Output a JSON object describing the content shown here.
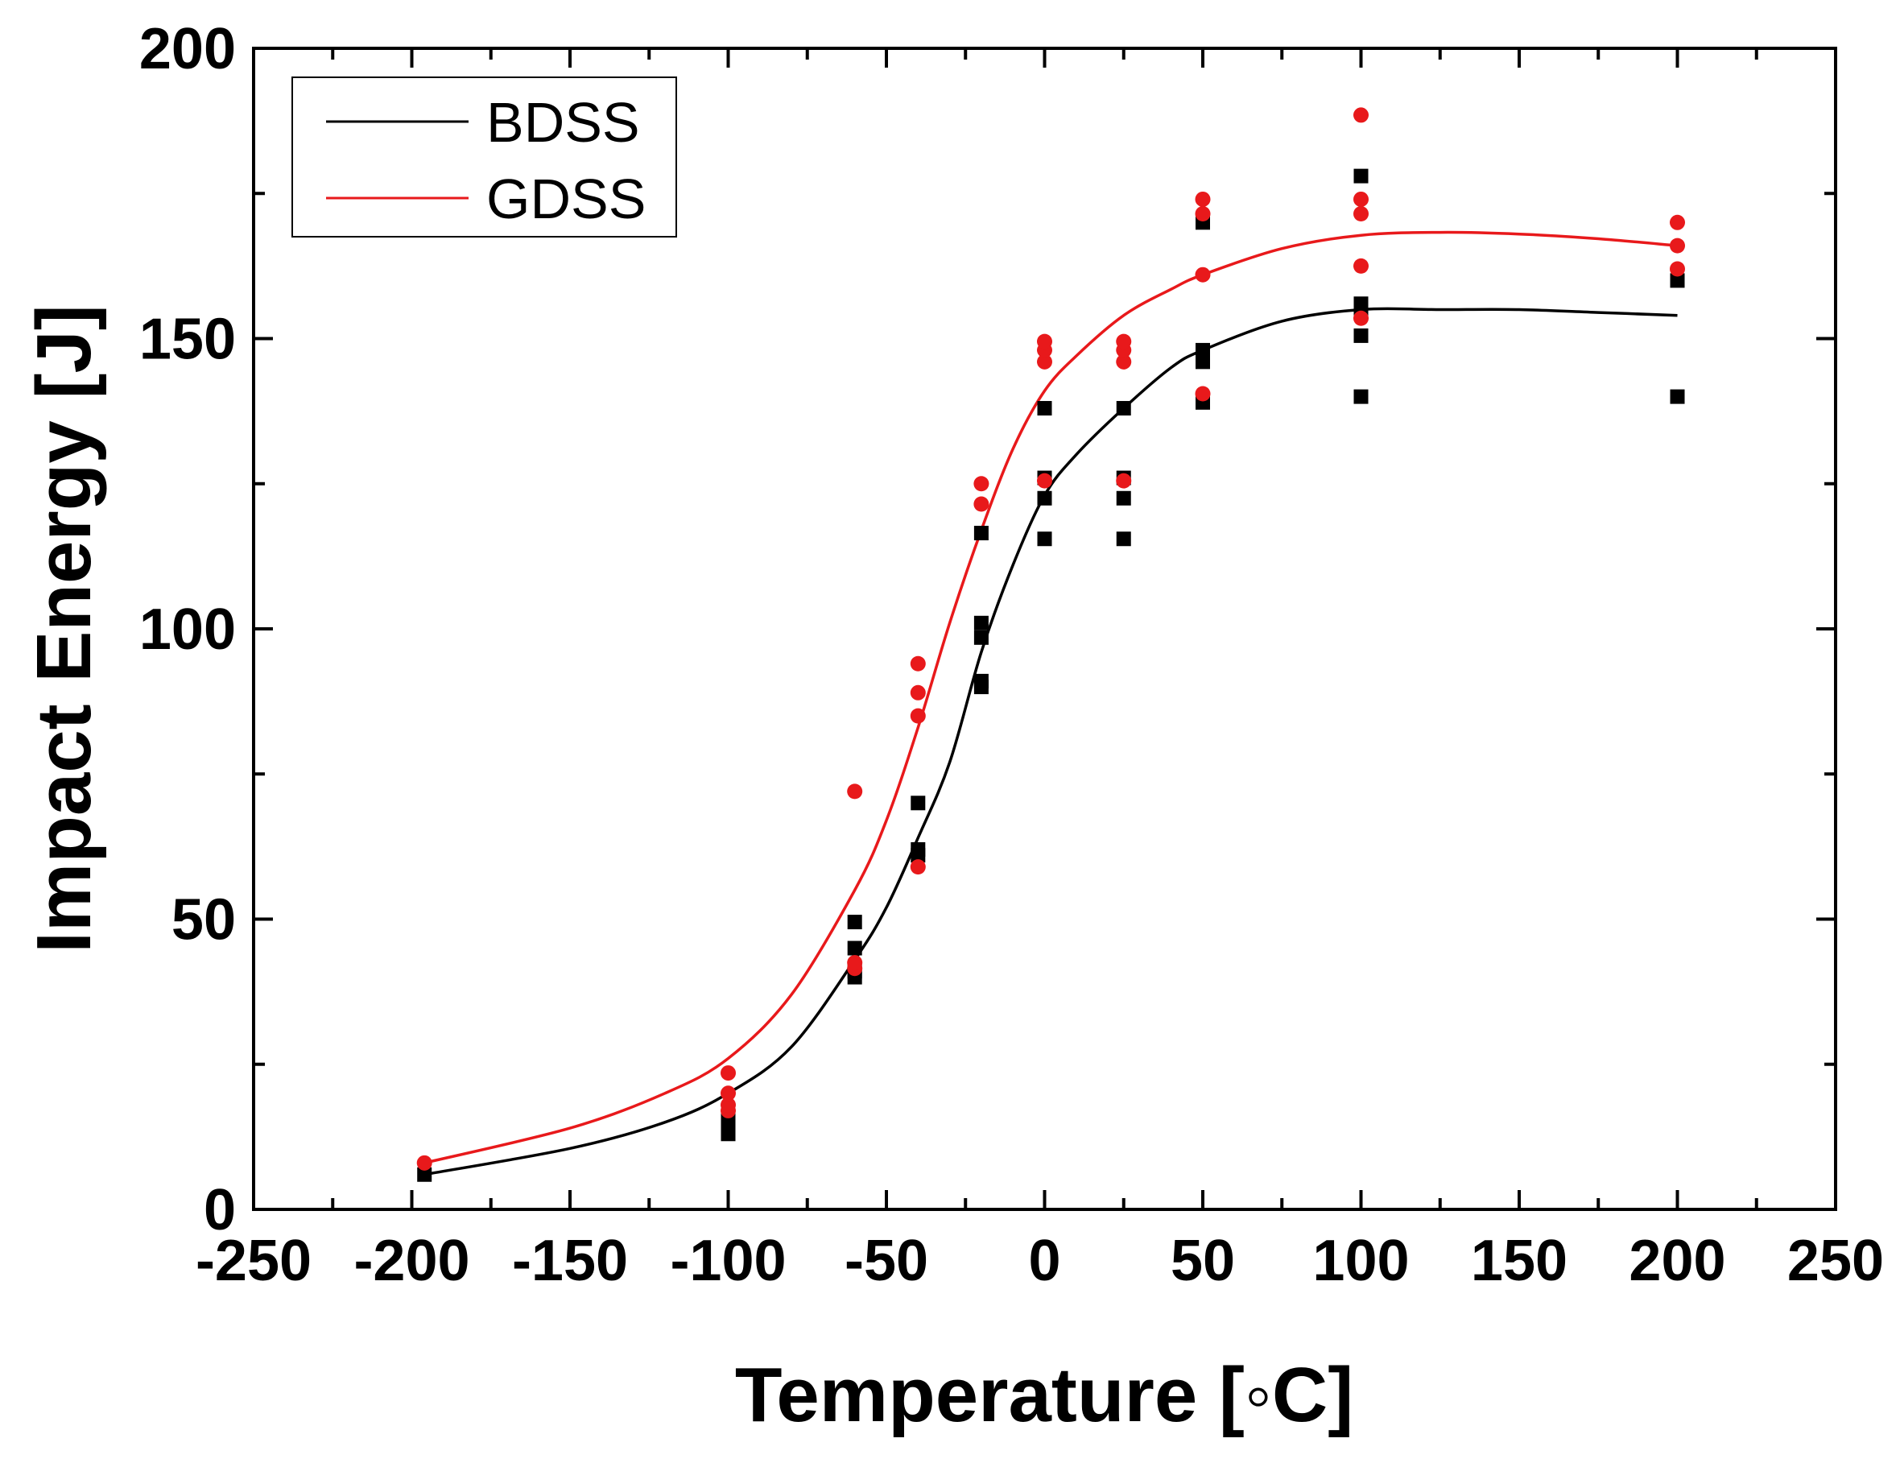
{
  "chart_data": {
    "type": "scatter",
    "xlabel": "Temperature [◦C]",
    "ylabel": "Impact Energy [J]",
    "xlim": [
      -250,
      250
    ],
    "ylim": [
      0,
      200
    ],
    "x_ticks": [
      -250,
      -200,
      -150,
      -100,
      -50,
      0,
      50,
      100,
      150,
      200,
      250
    ],
    "y_ticks": [
      0,
      50,
      100,
      150,
      200
    ],
    "x_tick_labels": [
      "-250",
      "-200",
      "-150",
      "-100",
      "-50",
      "0",
      "50",
      "100",
      "150",
      "200",
      "250"
    ],
    "y_tick_labels": [
      "0",
      "50",
      "100",
      "150",
      "200"
    ],
    "legend_position": "top-left",
    "series": [
      {
        "name": "BDSS",
        "color": "#000000",
        "marker": "square",
        "points": [
          [
            -196,
            6
          ],
          [
            -100,
            13
          ],
          [
            -100,
            14
          ],
          [
            -100,
            15
          ],
          [
            -100,
            16
          ],
          [
            -60,
            40
          ],
          [
            -60,
            41
          ],
          [
            -60,
            45
          ],
          [
            -60,
            49.5
          ],
          [
            -40,
            61
          ],
          [
            -40,
            62
          ],
          [
            -40,
            70
          ],
          [
            -20,
            90
          ],
          [
            -20,
            91
          ],
          [
            -20,
            98.5
          ],
          [
            -20,
            101
          ],
          [
            -20,
            116.5
          ],
          [
            0,
            115.5
          ],
          [
            0,
            122.5
          ],
          [
            0,
            126
          ],
          [
            0,
            138
          ],
          [
            25,
            115.5
          ],
          [
            25,
            122.5
          ],
          [
            25,
            126
          ],
          [
            25,
            138
          ],
          [
            50,
            139
          ],
          [
            50,
            146
          ],
          [
            50,
            147
          ],
          [
            50,
            148
          ],
          [
            50,
            170
          ],
          [
            100,
            140
          ],
          [
            100,
            150.5
          ],
          [
            100,
            155
          ],
          [
            100,
            156
          ],
          [
            100,
            178
          ],
          [
            200,
            140
          ],
          [
            200,
            160
          ]
        ],
        "fit_curve": [
          [
            -196,
            6
          ],
          [
            -150,
            10.5
          ],
          [
            -120,
            15
          ],
          [
            -100,
            20
          ],
          [
            -80,
            28
          ],
          [
            -60,
            43
          ],
          [
            -50,
            52
          ],
          [
            -40,
            64
          ],
          [
            -30,
            77
          ],
          [
            -20,
            96
          ],
          [
            -10,
            111
          ],
          [
            0,
            123
          ],
          [
            10,
            130
          ],
          [
            25,
            138
          ],
          [
            40,
            145
          ],
          [
            50,
            148
          ],
          [
            75,
            153
          ],
          [
            100,
            155
          ],
          [
            125,
            155
          ],
          [
            150,
            155
          ],
          [
            175,
            154.5
          ],
          [
            200,
            154
          ]
        ]
      },
      {
        "name": "GDSS",
        "color": "#e8191b",
        "marker": "circle",
        "points": [
          [
            -196,
            8
          ],
          [
            -100,
            17
          ],
          [
            -100,
            18
          ],
          [
            -100,
            20
          ],
          [
            -100,
            23.5
          ],
          [
            -60,
            41.5
          ],
          [
            -60,
            42.5
          ],
          [
            -60,
            72
          ],
          [
            -40,
            59
          ],
          [
            -40,
            85
          ],
          [
            -40,
            89
          ],
          [
            -40,
            94
          ],
          [
            -20,
            121.5
          ],
          [
            -20,
            125
          ],
          [
            0,
            125.5
          ],
          [
            0,
            146
          ],
          [
            0,
            148
          ],
          [
            0,
            149.5
          ],
          [
            25,
            125.5
          ],
          [
            25,
            146
          ],
          [
            25,
            148
          ],
          [
            25,
            149.5
          ],
          [
            50,
            140.5
          ],
          [
            50,
            161
          ],
          [
            50,
            171.5
          ],
          [
            50,
            174
          ],
          [
            100,
            153.5
          ],
          [
            100,
            162.5
          ],
          [
            100,
            171.5
          ],
          [
            100,
            174
          ],
          [
            100,
            188.5
          ],
          [
            200,
            162
          ],
          [
            200,
            166
          ],
          [
            200,
            170
          ]
        ],
        "fit_curve": [
          [
            -196,
            8
          ],
          [
            -150,
            14
          ],
          [
            -120,
            20
          ],
          [
            -100,
            26
          ],
          [
            -80,
            37
          ],
          [
            -60,
            55
          ],
          [
            -50,
            67
          ],
          [
            -40,
            83
          ],
          [
            -30,
            101
          ],
          [
            -20,
            117
          ],
          [
            -10,
            131
          ],
          [
            0,
            141
          ],
          [
            10,
            147
          ],
          [
            25,
            154
          ],
          [
            40,
            158.5
          ],
          [
            50,
            161
          ],
          [
            75,
            165.5
          ],
          [
            100,
            167.8
          ],
          [
            125,
            168.3
          ],
          [
            150,
            168
          ],
          [
            175,
            167.2
          ],
          [
            200,
            166
          ]
        ]
      }
    ]
  }
}
